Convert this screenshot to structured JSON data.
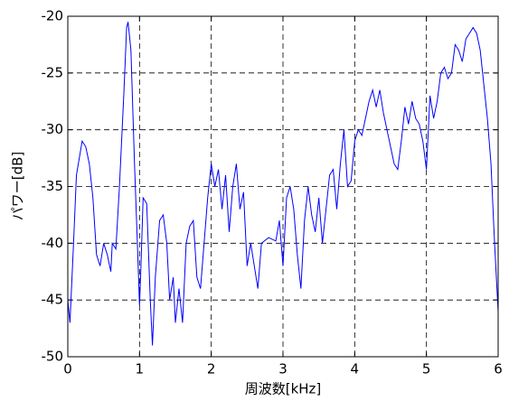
{
  "chart_data": {
    "type": "line",
    "xlabel": "周波数[kHz]",
    "ylabel": "パワー[dB]",
    "x": [
      0,
      0.03,
      0.08,
      0.12,
      0.2,
      0.25,
      0.3,
      0.35,
      0.4,
      0.45,
      0.5,
      0.55,
      0.6,
      0.62,
      0.67,
      0.72,
      0.78,
      0.82,
      0.84,
      0.88,
      0.93,
      0.97,
      1.0,
      1.02,
      1.05,
      1.1,
      1.15,
      1.18,
      1.22,
      1.28,
      1.33,
      1.38,
      1.42,
      1.47,
      1.5,
      1.55,
      1.6,
      1.65,
      1.7,
      1.75,
      1.8,
      1.85,
      1.9,
      1.95,
      2.0,
      2.05,
      2.1,
      2.15,
      2.2,
      2.25,
      2.3,
      2.35,
      2.4,
      2.45,
      2.5,
      2.55,
      2.6,
      2.65,
      2.7,
      2.8,
      2.9,
      2.95,
      3.0,
      3.05,
      3.1,
      3.15,
      3.2,
      3.25,
      3.3,
      3.35,
      3.4,
      3.45,
      3.5,
      3.55,
      3.6,
      3.65,
      3.7,
      3.75,
      3.8,
      3.85,
      3.9,
      3.95,
      4.0,
      4.05,
      4.1,
      4.15,
      4.2,
      4.25,
      4.3,
      4.35,
      4.4,
      4.45,
      4.5,
      4.55,
      4.6,
      4.65,
      4.7,
      4.75,
      4.8,
      4.85,
      4.9,
      4.95,
      5.0,
      5.05,
      5.1,
      5.15,
      5.2,
      5.25,
      5.3,
      5.35,
      5.4,
      5.45,
      5.5,
      5.55,
      5.6,
      5.65,
      5.7,
      5.75,
      5.8,
      5.85,
      5.9,
      5.95,
      6.0
    ],
    "series": [
      {
        "color": "#0000ff",
        "values": [
          -45,
          -47,
          -40,
          -34,
          -31,
          -31.5,
          -33,
          -36,
          -41,
          -42,
          -40,
          -41,
          -42.5,
          -40,
          -40.5,
          -35,
          -27,
          -21,
          -20.5,
          -23,
          -33,
          -40,
          -45.5,
          -42,
          -36,
          -36.5,
          -45,
          -49,
          -43,
          -38,
          -37.5,
          -40,
          -45,
          -43,
          -47,
          -44,
          -47,
          -40,
          -38.5,
          -38,
          -43,
          -44,
          -40,
          -36,
          -33,
          -35,
          -33.5,
          -37,
          -34,
          -39,
          -35,
          -33,
          -37,
          -35.5,
          -42,
          -40,
          -42,
          -44,
          -40,
          -39.5,
          -39.8,
          -38,
          -42,
          -36,
          -35,
          -37,
          -41,
          -44,
          -38,
          -35,
          -37.5,
          -39,
          -36,
          -40,
          -37,
          -34,
          -33.5,
          -37,
          -33,
          -30,
          -35,
          -34.5,
          -31,
          -30,
          -30.5,
          -29,
          -27.5,
          -26.5,
          -28,
          -26.5,
          -28.5,
          -30,
          -31.5,
          -33,
          -33.5,
          -31,
          -28,
          -29.5,
          -27.5,
          -29,
          -29.5,
          -31,
          -33.5,
          -27,
          -29,
          -27.5,
          -25,
          -24.5,
          -25.5,
          -25,
          -22.5,
          -23,
          -24,
          -22,
          -21.5,
          -21,
          -21.5,
          -23,
          -26,
          -29,
          -33,
          -40,
          -46
        ]
      }
    ],
    "xlim": [
      0,
      6
    ],
    "xticks": [
      0,
      1,
      2,
      3,
      4,
      5,
      6
    ],
    "ylim": [
      -50,
      -20
    ],
    "yticks": [
      -50,
      -45,
      -40,
      -35,
      -30,
      -25,
      -20
    ],
    "grid": true
  }
}
